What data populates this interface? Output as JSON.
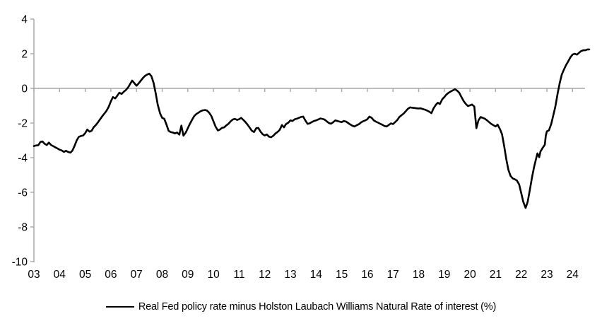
{
  "legend": {
    "label": "Real Fed policy rate minus Holston Laubach Williams Natural Rate of interest (%)"
  },
  "colors": {
    "series": "#000000",
    "axis": "#a6a6a6",
    "text": "#000000",
    "background": "#ffffff"
  },
  "chart_data": {
    "type": "line",
    "title": "",
    "xlabel": "",
    "ylabel": "",
    "grid": false,
    "legend_position": "bottom",
    "x_axis": {
      "tick_labels": [
        "03",
        "04",
        "05",
        "06",
        "07",
        "08",
        "09",
        "10",
        "11",
        "12",
        "13",
        "14",
        "15",
        "16",
        "17",
        "18",
        "19",
        "20",
        "21",
        "22",
        "23",
        "24"
      ],
      "range_years": [
        2003,
        2024.7
      ],
      "axis_line_at_value": 0
    },
    "y_axis": {
      "tick_labels": [
        "4",
        "2",
        "0",
        "-2",
        "-4",
        "-6",
        "-8",
        "-10"
      ],
      "tick_values": [
        4,
        2,
        0,
        -2,
        -4,
        -6,
        -8,
        -10
      ],
      "range": [
        -10,
        4
      ]
    },
    "series": [
      {
        "name": "Real Fed policy rate minus Holston Laubach Williams Natural Rate of interest (%)",
        "color": "#000000",
        "points": [
          [
            2003.0,
            -3.33
          ],
          [
            2003.08,
            -3.3
          ],
          [
            2003.17,
            -3.28
          ],
          [
            2003.25,
            -3.1
          ],
          [
            2003.33,
            -3.06
          ],
          [
            2003.42,
            -3.2
          ],
          [
            2003.5,
            -3.27
          ],
          [
            2003.58,
            -3.13
          ],
          [
            2003.67,
            -3.27
          ],
          [
            2003.75,
            -3.33
          ],
          [
            2003.83,
            -3.4
          ],
          [
            2003.92,
            -3.47
          ],
          [
            2004.0,
            -3.54
          ],
          [
            2004.08,
            -3.58
          ],
          [
            2004.17,
            -3.67
          ],
          [
            2004.25,
            -3.6
          ],
          [
            2004.33,
            -3.67
          ],
          [
            2004.42,
            -3.71
          ],
          [
            2004.5,
            -3.6
          ],
          [
            2004.58,
            -3.33
          ],
          [
            2004.67,
            -3.0
          ],
          [
            2004.75,
            -2.8
          ],
          [
            2004.83,
            -2.75
          ],
          [
            2004.92,
            -2.72
          ],
          [
            2005.0,
            -2.58
          ],
          [
            2005.08,
            -2.38
          ],
          [
            2005.17,
            -2.5
          ],
          [
            2005.25,
            -2.45
          ],
          [
            2005.33,
            -2.24
          ],
          [
            2005.42,
            -2.11
          ],
          [
            2005.5,
            -1.95
          ],
          [
            2005.58,
            -1.78
          ],
          [
            2005.67,
            -1.6
          ],
          [
            2005.75,
            -1.45
          ],
          [
            2005.83,
            -1.3
          ],
          [
            2005.92,
            -1.05
          ],
          [
            2006.0,
            -0.75
          ],
          [
            2006.08,
            -0.5
          ],
          [
            2006.17,
            -0.58
          ],
          [
            2006.25,
            -0.42
          ],
          [
            2006.33,
            -0.25
          ],
          [
            2006.42,
            -0.32
          ],
          [
            2006.5,
            -0.2
          ],
          [
            2006.58,
            -0.1
          ],
          [
            2006.67,
            0.05
          ],
          [
            2006.75,
            0.25
          ],
          [
            2006.83,
            0.45
          ],
          [
            2006.92,
            0.3
          ],
          [
            2007.0,
            0.15
          ],
          [
            2007.08,
            0.28
          ],
          [
            2007.17,
            0.45
          ],
          [
            2007.25,
            0.6
          ],
          [
            2007.33,
            0.72
          ],
          [
            2007.42,
            0.8
          ],
          [
            2007.5,
            0.85
          ],
          [
            2007.58,
            0.7
          ],
          [
            2007.67,
            0.3
          ],
          [
            2007.75,
            -0.3
          ],
          [
            2007.83,
            -0.95
          ],
          [
            2007.92,
            -1.45
          ],
          [
            2008.0,
            -1.7
          ],
          [
            2008.08,
            -1.75
          ],
          [
            2008.17,
            -2.1
          ],
          [
            2008.25,
            -2.45
          ],
          [
            2008.33,
            -2.52
          ],
          [
            2008.42,
            -2.55
          ],
          [
            2008.5,
            -2.6
          ],
          [
            2008.58,
            -2.55
          ],
          [
            2008.67,
            -2.67
          ],
          [
            2008.75,
            -2.15
          ],
          [
            2008.83,
            -2.73
          ],
          [
            2008.92,
            -2.55
          ],
          [
            2009.0,
            -2.3
          ],
          [
            2009.08,
            -2.05
          ],
          [
            2009.17,
            -1.8
          ],
          [
            2009.25,
            -1.6
          ],
          [
            2009.33,
            -1.48
          ],
          [
            2009.42,
            -1.4
          ],
          [
            2009.5,
            -1.32
          ],
          [
            2009.58,
            -1.27
          ],
          [
            2009.67,
            -1.25
          ],
          [
            2009.75,
            -1.28
          ],
          [
            2009.83,
            -1.4
          ],
          [
            2009.92,
            -1.6
          ],
          [
            2010.0,
            -1.9
          ],
          [
            2010.08,
            -2.2
          ],
          [
            2010.17,
            -2.43
          ],
          [
            2010.25,
            -2.38
          ],
          [
            2010.33,
            -2.28
          ],
          [
            2010.42,
            -2.25
          ],
          [
            2010.5,
            -2.14
          ],
          [
            2010.58,
            -2.05
          ],
          [
            2010.67,
            -1.9
          ],
          [
            2010.75,
            -1.8
          ],
          [
            2010.83,
            -1.76
          ],
          [
            2010.92,
            -1.82
          ],
          [
            2011.0,
            -1.78
          ],
          [
            2011.08,
            -1.7
          ],
          [
            2011.17,
            -1.83
          ],
          [
            2011.25,
            -1.95
          ],
          [
            2011.33,
            -2.1
          ],
          [
            2011.42,
            -2.28
          ],
          [
            2011.5,
            -2.45
          ],
          [
            2011.58,
            -2.52
          ],
          [
            2011.67,
            -2.3
          ],
          [
            2011.75,
            -2.28
          ],
          [
            2011.83,
            -2.48
          ],
          [
            2011.92,
            -2.65
          ],
          [
            2012.0,
            -2.72
          ],
          [
            2012.08,
            -2.66
          ],
          [
            2012.17,
            -2.79
          ],
          [
            2012.25,
            -2.82
          ],
          [
            2012.33,
            -2.74
          ],
          [
            2012.42,
            -2.6
          ],
          [
            2012.5,
            -2.52
          ],
          [
            2012.58,
            -2.4
          ],
          [
            2012.67,
            -2.12
          ],
          [
            2012.75,
            -2.25
          ],
          [
            2012.83,
            -2.06
          ],
          [
            2012.92,
            -1.98
          ],
          [
            2013.0,
            -1.85
          ],
          [
            2013.08,
            -1.88
          ],
          [
            2013.17,
            -1.78
          ],
          [
            2013.25,
            -1.75
          ],
          [
            2013.33,
            -1.7
          ],
          [
            2013.42,
            -1.65
          ],
          [
            2013.5,
            -1.63
          ],
          [
            2013.58,
            -1.85
          ],
          [
            2013.67,
            -2.05
          ],
          [
            2013.75,
            -2.02
          ],
          [
            2013.83,
            -1.95
          ],
          [
            2013.92,
            -1.88
          ],
          [
            2014.0,
            -1.85
          ],
          [
            2014.08,
            -1.8
          ],
          [
            2014.17,
            -1.74
          ],
          [
            2014.25,
            -1.76
          ],
          [
            2014.33,
            -1.8
          ],
          [
            2014.42,
            -1.9
          ],
          [
            2014.5,
            -2.0
          ],
          [
            2014.58,
            -2.04
          ],
          [
            2014.67,
            -1.95
          ],
          [
            2014.75,
            -1.85
          ],
          [
            2014.83,
            -1.88
          ],
          [
            2014.92,
            -1.92
          ],
          [
            2015.0,
            -1.95
          ],
          [
            2015.08,
            -1.88
          ],
          [
            2015.17,
            -1.92
          ],
          [
            2015.25,
            -2.0
          ],
          [
            2015.33,
            -2.08
          ],
          [
            2015.42,
            -2.16
          ],
          [
            2015.5,
            -2.2
          ],
          [
            2015.58,
            -2.13
          ],
          [
            2015.67,
            -2.07
          ],
          [
            2015.75,
            -1.97
          ],
          [
            2015.83,
            -1.9
          ],
          [
            2015.92,
            -1.85
          ],
          [
            2016.0,
            -1.78
          ],
          [
            2016.08,
            -1.63
          ],
          [
            2016.17,
            -1.7
          ],
          [
            2016.25,
            -1.85
          ],
          [
            2016.33,
            -1.92
          ],
          [
            2016.42,
            -1.98
          ],
          [
            2016.5,
            -2.04
          ],
          [
            2016.58,
            -2.1
          ],
          [
            2016.67,
            -2.17
          ],
          [
            2016.75,
            -2.2
          ],
          [
            2016.83,
            -2.12
          ],
          [
            2016.92,
            -2.02
          ],
          [
            2017.0,
            -2.06
          ],
          [
            2017.08,
            -1.95
          ],
          [
            2017.17,
            -1.82
          ],
          [
            2017.25,
            -1.65
          ],
          [
            2017.33,
            -1.55
          ],
          [
            2017.42,
            -1.45
          ],
          [
            2017.5,
            -1.32
          ],
          [
            2017.58,
            -1.18
          ],
          [
            2017.67,
            -1.1
          ],
          [
            2017.75,
            -1.12
          ],
          [
            2017.83,
            -1.13
          ],
          [
            2017.92,
            -1.15
          ],
          [
            2018.0,
            -1.16
          ],
          [
            2018.08,
            -1.15
          ],
          [
            2018.17,
            -1.2
          ],
          [
            2018.25,
            -1.23
          ],
          [
            2018.33,
            -1.28
          ],
          [
            2018.42,
            -1.35
          ],
          [
            2018.5,
            -1.43
          ],
          [
            2018.58,
            -1.15
          ],
          [
            2018.67,
            -0.95
          ],
          [
            2018.75,
            -0.83
          ],
          [
            2018.83,
            -0.9
          ],
          [
            2018.92,
            -0.63
          ],
          [
            2019.0,
            -0.5
          ],
          [
            2019.08,
            -0.36
          ],
          [
            2019.17,
            -0.25
          ],
          [
            2019.25,
            -0.18
          ],
          [
            2019.33,
            -0.12
          ],
          [
            2019.42,
            -0.05
          ],
          [
            2019.5,
            -0.13
          ],
          [
            2019.58,
            -0.25
          ],
          [
            2019.67,
            -0.5
          ],
          [
            2019.75,
            -0.72
          ],
          [
            2019.83,
            -0.88
          ],
          [
            2019.92,
            -1.02
          ],
          [
            2020.0,
            -0.98
          ],
          [
            2020.08,
            -0.93
          ],
          [
            2020.17,
            -1.05
          ],
          [
            2020.25,
            -2.3
          ],
          [
            2020.33,
            -1.85
          ],
          [
            2020.42,
            -1.65
          ],
          [
            2020.5,
            -1.7
          ],
          [
            2020.58,
            -1.75
          ],
          [
            2020.67,
            -1.85
          ],
          [
            2020.75,
            -1.95
          ],
          [
            2020.83,
            -2.05
          ],
          [
            2020.92,
            -2.13
          ],
          [
            2021.0,
            -2.2
          ],
          [
            2021.08,
            -2.1
          ],
          [
            2021.17,
            -2.35
          ],
          [
            2021.25,
            -2.65
          ],
          [
            2021.33,
            -3.3
          ],
          [
            2021.42,
            -4.1
          ],
          [
            2021.5,
            -4.7
          ],
          [
            2021.58,
            -5.05
          ],
          [
            2021.67,
            -5.2
          ],
          [
            2021.75,
            -5.25
          ],
          [
            2021.83,
            -5.32
          ],
          [
            2021.92,
            -5.55
          ],
          [
            2022.0,
            -6.05
          ],
          [
            2022.08,
            -6.55
          ],
          [
            2022.17,
            -6.9
          ],
          [
            2022.25,
            -6.55
          ],
          [
            2022.33,
            -5.9
          ],
          [
            2022.42,
            -5.15
          ],
          [
            2022.5,
            -4.55
          ],
          [
            2022.58,
            -4.05
          ],
          [
            2022.63,
            -3.75
          ],
          [
            2022.7,
            -3.97
          ],
          [
            2022.75,
            -3.65
          ],
          [
            2022.83,
            -3.45
          ],
          [
            2022.92,
            -3.25
          ],
          [
            2022.96,
            -2.72
          ],
          [
            2023.0,
            -2.48
          ],
          [
            2023.08,
            -2.42
          ],
          [
            2023.17,
            -2.05
          ],
          [
            2023.25,
            -1.55
          ],
          [
            2023.33,
            -1.05
          ],
          [
            2023.42,
            -0.3
          ],
          [
            2023.5,
            0.3
          ],
          [
            2023.58,
            0.8
          ],
          [
            2023.67,
            1.1
          ],
          [
            2023.75,
            1.35
          ],
          [
            2023.83,
            1.55
          ],
          [
            2023.92,
            1.8
          ],
          [
            2024.0,
            1.95
          ],
          [
            2024.08,
            2.0
          ],
          [
            2024.17,
            1.95
          ],
          [
            2024.25,
            2.05
          ],
          [
            2024.33,
            2.15
          ],
          [
            2024.42,
            2.2
          ],
          [
            2024.5,
            2.2
          ],
          [
            2024.58,
            2.25
          ],
          [
            2024.65,
            2.25
          ]
        ]
      }
    ]
  }
}
